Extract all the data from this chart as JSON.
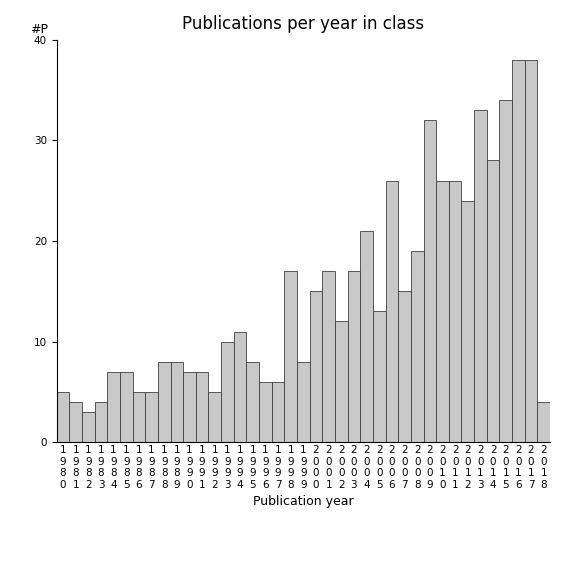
{
  "title": "Publications per year in class",
  "xlabel": "Publication year",
  "ylabel": "#P",
  "ylim": [
    0,
    40
  ],
  "yticks": [
    0,
    10,
    20,
    30,
    40
  ],
  "bar_color": "#C8C8C8",
  "bar_edgecolor": "#404040",
  "background_color": "#ffffff",
  "years": [
    1980,
    1981,
    1982,
    1983,
    1984,
    1985,
    1986,
    1987,
    1988,
    1989,
    1990,
    1991,
    1992,
    1993,
    1994,
    1995,
    1996,
    1997,
    1998,
    1999,
    2000,
    2001,
    2002,
    2003,
    2004,
    2005,
    2006,
    2007,
    2008,
    2009,
    2010,
    2011,
    2012,
    2013,
    2014,
    2015,
    2016,
    2017,
    2018
  ],
  "values": [
    5,
    4,
    3,
    4,
    7,
    7,
    5,
    5,
    8,
    8,
    7,
    7,
    5,
    10,
    11,
    8,
    6,
    6,
    17,
    8,
    15,
    17,
    12,
    17,
    21,
    13,
    26,
    15,
    19,
    32,
    26,
    26,
    24,
    33,
    28,
    34,
    38,
    38,
    4
  ],
  "title_fontsize": 12,
  "axis_label_fontsize": 9,
  "tick_fontsize": 7.5
}
